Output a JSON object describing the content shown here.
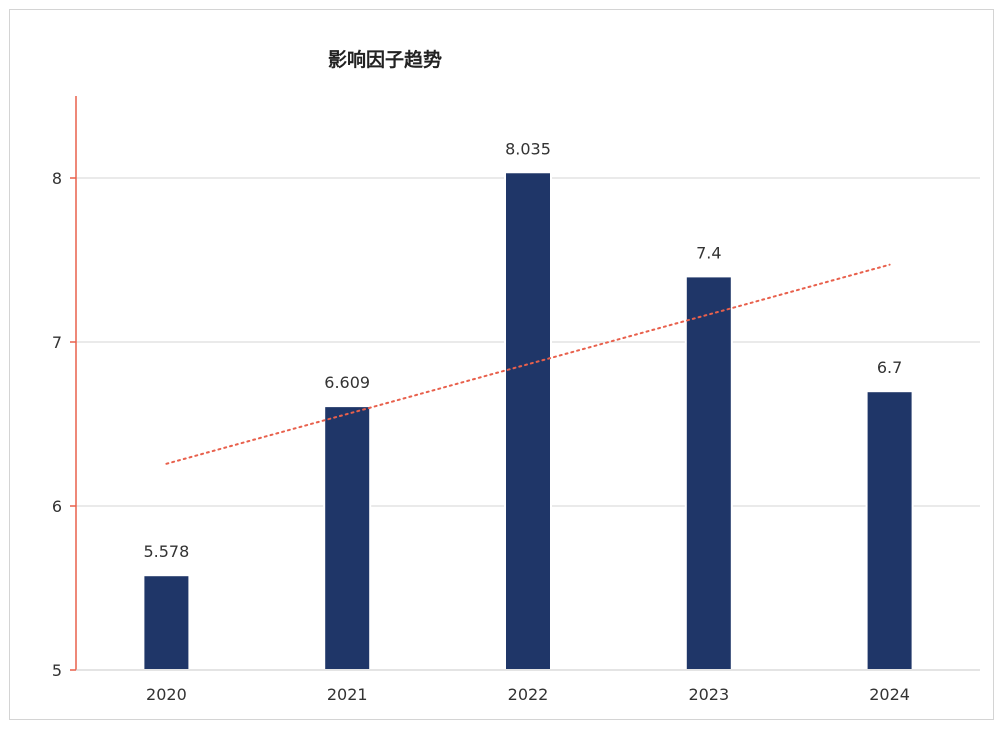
{
  "chart_data": {
    "type": "bar",
    "title": "影响因子趋势",
    "xlabel": "",
    "ylabel": "",
    "categories": [
      "2020",
      "2021",
      "2022",
      "2023",
      "2024"
    ],
    "values": [
      5.578,
      6.609,
      8.035,
      7.4,
      6.7
    ],
    "value_labels": [
      "5.578",
      "6.609",
      "8.035",
      "7.4",
      "6.7"
    ],
    "ylim": [
      5,
      8.5
    ],
    "yticks": [
      5,
      6,
      7,
      8
    ],
    "grid": true,
    "trendline": {
      "type": "linear",
      "style": "dotted",
      "color": "#e8604c"
    },
    "colors": {
      "bar": "#1f3668",
      "axis": "#e8604c",
      "grid": "#d6d6d6"
    }
  }
}
